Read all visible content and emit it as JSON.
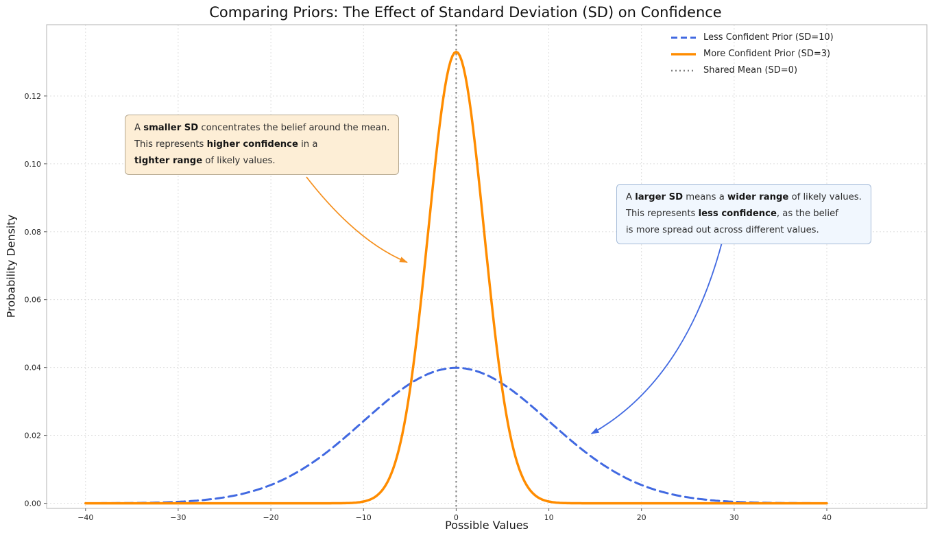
{
  "chart_data": {
    "type": "line",
    "title": "Comparing Priors: The Effect of Standard Deviation (SD) on Confidence",
    "xlabel": "Possible Values",
    "ylabel": "Probability Density",
    "xlim": [
      -44.2,
      50.8
    ],
    "ylim": [
      -0.0015,
      0.141
    ],
    "curve_x_range": [
      -40,
      40
    ],
    "grid": true,
    "xticks": {
      "values": [
        -40,
        -30,
        -20,
        -10,
        0,
        10,
        20,
        30,
        40
      ],
      "labels": [
        "−40",
        "−30",
        "−20",
        "−10",
        "0",
        "10",
        "20",
        "30",
        "40"
      ]
    },
    "yticks": {
      "values": [
        0.0,
        0.02,
        0.04,
        0.06,
        0.08,
        0.1,
        0.12
      ],
      "labels": [
        "0.00",
        "0.02",
        "0.04",
        "0.06",
        "0.08",
        "0.10",
        "0.12"
      ]
    },
    "series": [
      {
        "name": "Less Confident Prior (SD=10)",
        "distribution": "normal",
        "mean": 0,
        "sd": 10,
        "peak_density": 0.0399,
        "color": "#4169e1",
        "line_style": "dashed",
        "line_width": 3
      },
      {
        "name": "More Confident Prior (SD=3)",
        "distribution": "normal",
        "mean": 0,
        "sd": 3,
        "peak_density": 0.133,
        "color": "#ff8c00",
        "line_style": "solid",
        "line_width": 3.5
      }
    ],
    "vline": {
      "x": 0,
      "label": "Shared Mean (SD=0)",
      "color": "#7f7f7f",
      "line_style": "dotted",
      "line_width": 2
    },
    "legend": {
      "position": "upper right",
      "entries": [
        {
          "label": "Less Confident Prior (SD=10)",
          "color": "#4169e1",
          "style": "dashed"
        },
        {
          "label": "More Confident Prior (SD=3)",
          "color": "#ff8c00",
          "style": "solid"
        },
        {
          "label": "Shared Mean (SD=0)",
          "color": "#7f7f7f",
          "style": "dotted"
        }
      ]
    }
  },
  "annotations": {
    "smaller_sd": {
      "lines": [
        [
          {
            "t": "A "
          },
          {
            "t": "smaller SD",
            "b": true
          },
          {
            "t": " concentrates the belief around the mean."
          }
        ],
        [
          {
            "t": "This represents "
          },
          {
            "t": "higher confidence",
            "b": true
          },
          {
            "t": " in a"
          }
        ],
        [
          {
            "t": "tighter range",
            "b": true
          },
          {
            "t": " of likely values."
          }
        ]
      ],
      "bg": "#fdeed6",
      "border": "#b4a78f",
      "arrow_color": "#f59120",
      "points_to": {
        "x": -5.3,
        "y": 0.071
      }
    },
    "larger_sd": {
      "lines": [
        [
          {
            "t": "A "
          },
          {
            "t": "larger SD",
            "b": true
          },
          {
            "t": " means a "
          },
          {
            "t": "wider range",
            "b": true
          },
          {
            "t": " of likely values."
          }
        ],
        [
          {
            "t": "This represents "
          },
          {
            "t": "less confidence",
            "b": true
          },
          {
            "t": ", as the belief"
          }
        ],
        [
          {
            "t": "is more spread out across different values."
          }
        ]
      ],
      "bg": "#f1f7fe",
      "border": "#a5bbd8",
      "arrow_color": "#4169e1",
      "points_to": {
        "x": 14.6,
        "y": 0.0205
      }
    }
  }
}
